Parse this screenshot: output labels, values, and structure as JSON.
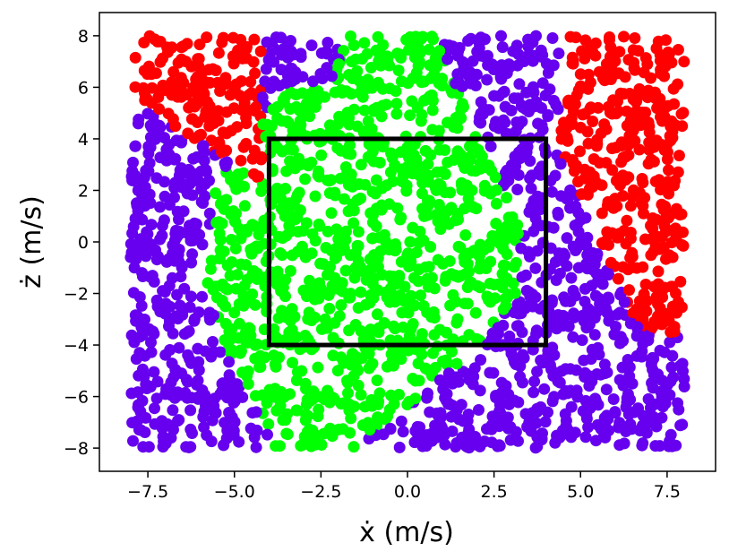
{
  "chart_data": {
    "type": "scatter",
    "title": "",
    "xlabel": "ẋ (m/s)",
    "ylabel": "ż (m/s)",
    "xlim": [
      -8.9,
      8.9
    ],
    "ylim": [
      -8.9,
      8.9
    ],
    "xticks": [
      -7.5,
      -5.0,
      -2.5,
      0.0,
      2.5,
      5.0,
      7.5
    ],
    "xtick_labels": [
      "−7.5",
      "−5.0",
      "−2.5",
      "0.0",
      "2.5",
      "5.0",
      "7.5"
    ],
    "yticks": [
      -8,
      -6,
      -4,
      -2,
      0,
      2,
      4,
      6,
      8
    ],
    "ytick_labels": [
      "−8",
      "−6",
      "−4",
      "−2",
      "0",
      "2",
      "4",
      "6",
      "8"
    ],
    "grid": false,
    "legend": "none",
    "sampling_domain": {
      "x": [
        -8,
        8
      ],
      "y": [
        -8,
        8
      ]
    },
    "classes": [
      {
        "color": "#00ff00",
        "region": "central blob, roughly x in [-6, 3.2], y in [-7.5, 8]"
      },
      {
        "color": "#ff0000",
        "region": "top-left corner (x < -4, y > 2) and right edge (x > 4.5, y > -3.5)"
      },
      {
        "color": "#6600ee",
        "region": "all remaining points"
      }
    ],
    "rectangle": {
      "x": [
        -4,
        4
      ],
      "y": [
        -4,
        4
      ],
      "color": "#000000"
    }
  }
}
